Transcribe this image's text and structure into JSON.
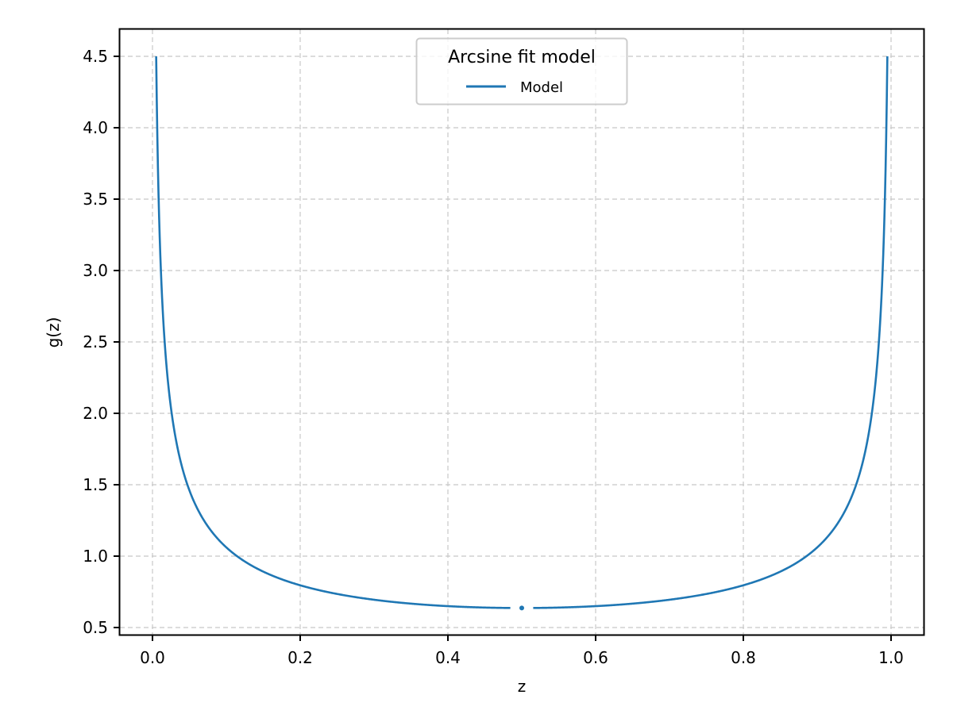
{
  "chart_data": {
    "type": "line",
    "title": "",
    "xlabel": "z",
    "ylabel": "g(z)",
    "xlim": [
      -0.045,
      1.045
    ],
    "ylim": [
      0.445,
      4.694
    ],
    "xticks": [
      0.0,
      0.2,
      0.4,
      0.6,
      0.8,
      1.0
    ],
    "xtick_labels": [
      "0.0",
      "0.2",
      "0.4",
      "0.6",
      "0.8",
      "1.0"
    ],
    "yticks": [
      0.5,
      1.0,
      1.5,
      2.0,
      2.5,
      3.0,
      3.5,
      4.0,
      4.5
    ],
    "ytick_labels": [
      "0.5",
      "1.0",
      "1.5",
      "2.0",
      "2.5",
      "3.0",
      "3.5",
      "4.0",
      "4.5"
    ],
    "grid": true,
    "legend": {
      "title": "Arcsine fit model",
      "position": "upper center",
      "entries": [
        {
          "label": "Model",
          "color": "#1f77b4"
        }
      ]
    },
    "series": [
      {
        "name": "Model",
        "color": "#1f77b4",
        "function": "1/(pi*sqrt(z*(1-z)))",
        "x_range": [
          0.005,
          0.995
        ],
        "y_clip": 4.5,
        "marker_at": {
          "x": 0.5,
          "y": 0.6366
        },
        "x": [
          0.005,
          0.0075,
          0.01,
          0.015,
          0.02,
          0.03,
          0.04,
          0.05,
          0.07,
          0.1,
          0.15,
          0.2,
          0.25,
          0.3,
          0.35,
          0.4,
          0.45,
          0.5,
          0.55,
          0.6,
          0.65,
          0.7,
          0.75,
          0.8,
          0.85,
          0.9,
          0.93,
          0.95,
          0.96,
          0.97,
          0.98,
          0.985,
          0.99,
          0.9925,
          0.995
        ],
        "values": [
          4.5,
          3.69,
          3.2,
          2.62,
          2.27,
          1.86,
          1.62,
          1.46,
          1.25,
          1.06,
          0.891,
          0.796,
          0.735,
          0.695,
          0.667,
          0.65,
          0.64,
          0.637,
          0.64,
          0.65,
          0.667,
          0.695,
          0.735,
          0.796,
          0.891,
          1.06,
          1.25,
          1.46,
          1.62,
          1.86,
          2.27,
          2.62,
          3.2,
          3.69,
          4.5
        ]
      }
    ]
  },
  "colors": {
    "line": "#1f77b4",
    "grid": "#c8c8c8",
    "axes": "#000000",
    "legend_border": "#cccccc"
  }
}
